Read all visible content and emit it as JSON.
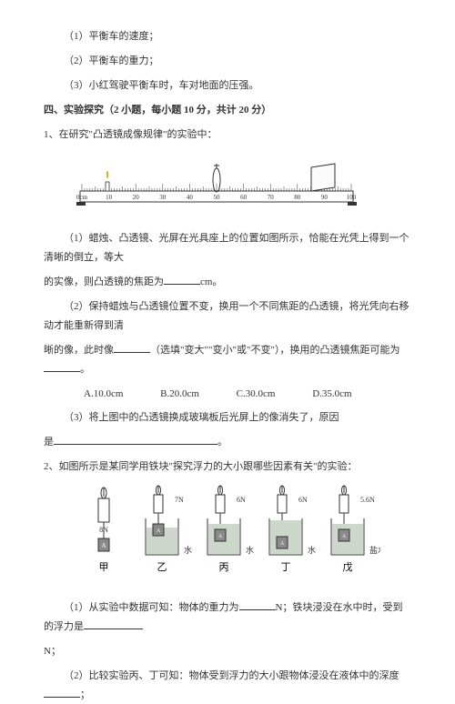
{
  "q1_1": "（1）平衡车的速度；",
  "q1_2": "（2）平衡车的重力；",
  "q1_3": "（3）小红驾驶平衡车时，车对地面的压强。",
  "section4": "四、实验探究（2 小题，每小题 10 分，共计 20 分）",
  "q1_intro": "1、在研究\"凸透镜成像规律\"的实验中：",
  "ruler_labels": [
    "0cm",
    "10",
    "20",
    "30",
    "40",
    "50",
    "60",
    "70",
    "80",
    "90",
    "100"
  ],
  "q1_sub1_a": "（1）蜡烛、凸透镜、光屏在光具座上的位置如图所示，恰能在光凭上得到一个清晰的倒立，等大",
  "q1_sub1_b": "的实像，则凸透镜的焦距为",
  "q1_sub1_c": "cm。",
  "q1_sub2_a": "（2）保持蜡烛与凸透镜位置不变，换用一个不同焦距的凸透镜，将光凭向右移动才能重新得到清",
  "q1_sub2_b": "晰的像，此时像",
  "q1_sub2_c": "（选填\"变大\"\"变小\"或\"不变\"），换用的凸透镜焦距可能为",
  "q1_sub2_d": "。",
  "opts": {
    "a": "A.10.0cm",
    "b": "B.20.0cm",
    "c": "C.30.0cm",
    "d": "D.35.0cm"
  },
  "q1_sub3_a": "（3）将上图中的凸透镜换成玻璃板后光屏上的像消失了，原因",
  "q1_sub3_b": "是",
  "q1_sub3_c": "。",
  "q2_intro": "2、如图所示是某同学用铁块\"探究浮力的大小跟哪些因素有关\"的实验：",
  "fig2": {
    "readings": [
      "8N",
      "7N",
      "6N",
      "6N",
      "5.6N"
    ],
    "labels": [
      "甲",
      "乙",
      "丙",
      "丁",
      "戊"
    ],
    "liquids": [
      "",
      "水",
      "水",
      "水",
      "盐水"
    ],
    "colors": {
      "water": "#cdd7cc",
      "block": "#8a8a8a",
      "line": "#333333"
    }
  },
  "q2_sub1_a": "（1）从实验中数据可知：物体的重力为",
  "q2_sub1_b": "N；铁块浸没在水中时，受到的浮力是",
  "q2_sub1_c": "N；",
  "q2_sub2_a": "（2）比较实验丙、丁可知：物体受到浮力的大小跟物体浸没在液体中的深度",
  "q2_sub2_b": "；"
}
